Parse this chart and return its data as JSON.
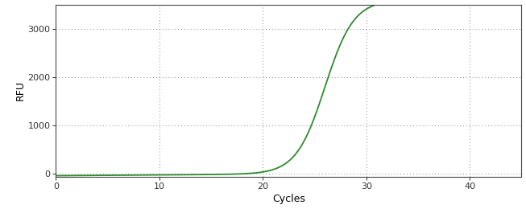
{
  "xlabel": "Cycles",
  "ylabel": "RFU",
  "line_color": "#2e8b2e",
  "background_color": "#ffffff",
  "plot_bg_color": "#ffffff",
  "xlim": [
    0,
    45
  ],
  "ylim": [
    -80,
    3500
  ],
  "xticks": [
    0,
    10,
    20,
    30,
    40
  ],
  "yticks": [
    0,
    1000,
    2000,
    3000
  ],
  "grid_color": "#888888",
  "line_width": 1.3,
  "sigmoid_L": 3600,
  "sigmoid_k": 0.72,
  "sigmoid_x0": 26.0,
  "sigmoid_baseline": -50,
  "x_start": 0,
  "x_end": 45,
  "n_points": 1000,
  "label_fontsize": 9,
  "tick_fontsize": 8
}
